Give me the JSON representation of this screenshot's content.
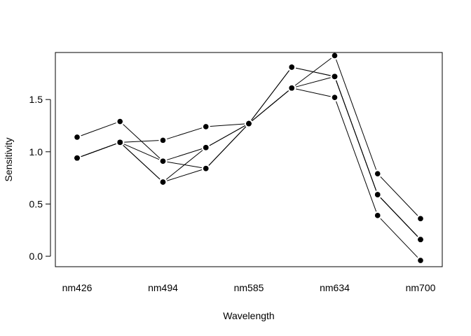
{
  "chart_data": {
    "type": "line",
    "xlabel": "Wavelength",
    "ylabel": "Sensitivity",
    "x_tick_labels": [
      "nm426",
      "nm494",
      "nm585",
      "nm634",
      "nm700"
    ],
    "categories": [
      "1",
      "2",
      "3",
      "4",
      "5",
      "6",
      "7",
      "8",
      "9"
    ],
    "ylim": [
      -0.1,
      1.95
    ],
    "y_ticks": [
      0.0,
      0.5,
      1.0,
      1.5
    ],
    "y_tick_labels": [
      "0.0",
      "0.5",
      "1.0",
      "1.5"
    ],
    "grid": false,
    "legend": "none",
    "series": [
      {
        "values": [
          1.14,
          1.29,
          0.91,
          0.84,
          1.27,
          1.61,
          1.92,
          0.79,
          0.36
        ]
      },
      {
        "values": [
          0.94,
          1.09,
          1.11,
          1.24,
          1.27,
          1.81,
          1.72,
          0.59,
          0.16
        ]
      },
      {
        "values": [
          0.94,
          1.09,
          0.71,
          1.04,
          1.27,
          1.61,
          1.52,
          0.39,
          -0.04
        ]
      },
      {
        "values": [
          0.94,
          1.09,
          0.91,
          1.04,
          1.27,
          1.81,
          1.72,
          0.59,
          0.16
        ]
      },
      {
        "values": [
          0.94,
          1.09,
          0.71,
          0.84,
          1.27,
          1.61,
          1.72,
          0.59,
          0.16
        ]
      }
    ],
    "line_color": "#000000",
    "point_color": "#000000"
  }
}
